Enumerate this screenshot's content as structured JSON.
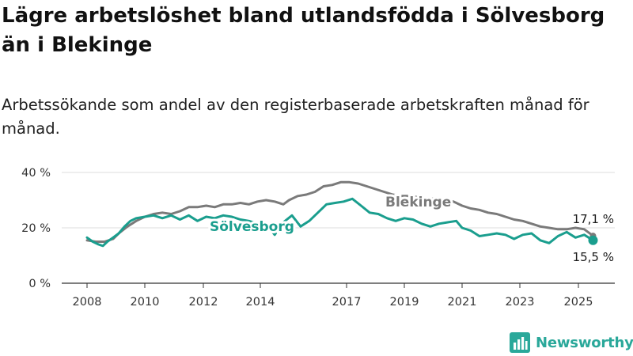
{
  "title": "Lägre arbetslöshet bland utlandsfödda i Sölvesborg än i Blekinge",
  "subtitle": "Arbetssökande som andel av den registerbaserade arbetskraften månad för månad.",
  "brand": {
    "name": "Newsworthy",
    "icon": "newsworthy-logo-icon",
    "color": "#2aa89a"
  },
  "chart_data": {
    "type": "line",
    "title": "Lägre arbetslöshet bland utlandsfödda i Sölvesborg än i Blekinge",
    "subtitle": "Arbetssökande som andel av den registerbaserade arbetskraften månad för månad.",
    "xlabel": "",
    "ylabel": "",
    "xlim": [
      2008,
      2025.75
    ],
    "ylim": [
      0,
      40
    ],
    "yticks": [
      0,
      20,
      40
    ],
    "yticklabels": [
      "0 %",
      "20 %",
      "40 %"
    ],
    "xticks": [
      2008,
      2010,
      2012,
      2014,
      2017,
      2019,
      2021,
      2023,
      2025
    ],
    "xticklabels": [
      "2008",
      "2010",
      "2012",
      "2014",
      "2017",
      "2019",
      "2021",
      "2023",
      "2025"
    ],
    "grid": true,
    "series": [
      {
        "name": "Blekinge",
        "color": "#7a7a7a",
        "end_label": "17,1 %",
        "points": [
          [
            2008.0,
            15.5
          ],
          [
            2008.3,
            15.0
          ],
          [
            2008.6,
            15.0
          ],
          [
            2008.9,
            16.0
          ],
          [
            2009.1,
            18.0
          ],
          [
            2009.4,
            20.5
          ],
          [
            2009.7,
            22.5
          ],
          [
            2010.0,
            24.0
          ],
          [
            2010.3,
            25.0
          ],
          [
            2010.6,
            25.5
          ],
          [
            2010.9,
            25.0
          ],
          [
            2011.2,
            26.0
          ],
          [
            2011.5,
            27.5
          ],
          [
            2011.8,
            27.5
          ],
          [
            2012.1,
            28.0
          ],
          [
            2012.4,
            27.5
          ],
          [
            2012.7,
            28.5
          ],
          [
            2013.0,
            28.5
          ],
          [
            2013.3,
            29.0
          ],
          [
            2013.6,
            28.5
          ],
          [
            2013.9,
            29.5
          ],
          [
            2014.2,
            30.0
          ],
          [
            2014.5,
            29.5
          ],
          [
            2014.8,
            28.5
          ],
          [
            2015.0,
            30.0
          ],
          [
            2015.3,
            31.5
          ],
          [
            2015.6,
            32.0
          ],
          [
            2015.9,
            33.0
          ],
          [
            2016.2,
            35.0
          ],
          [
            2016.5,
            35.5
          ],
          [
            2016.8,
            36.5
          ],
          [
            2017.1,
            36.5
          ],
          [
            2017.4,
            36.0
          ],
          [
            2017.7,
            35.0
          ],
          [
            2018.0,
            34.0
          ],
          [
            2018.3,
            33.0
          ],
          [
            2018.6,
            32.0
          ],
          [
            2018.9,
            31.5
          ],
          [
            2019.2,
            31.5
          ],
          [
            2019.5,
            31.0
          ],
          [
            2019.8,
            30.5
          ],
          [
            2020.1,
            30.5
          ],
          [
            2020.4,
            30.0
          ],
          [
            2020.7,
            29.5
          ],
          [
            2021.0,
            28.0
          ],
          [
            2021.3,
            27.0
          ],
          [
            2021.6,
            26.5
          ],
          [
            2021.9,
            25.5
          ],
          [
            2022.2,
            25.0
          ],
          [
            2022.5,
            24.0
          ],
          [
            2022.8,
            23.0
          ],
          [
            2023.1,
            22.5
          ],
          [
            2023.4,
            21.5
          ],
          [
            2023.7,
            20.5
          ],
          [
            2024.0,
            20.0
          ],
          [
            2024.3,
            19.5
          ],
          [
            2024.6,
            19.5
          ],
          [
            2024.9,
            20.0
          ],
          [
            2025.2,
            19.5
          ],
          [
            2025.5,
            17.1
          ]
        ]
      },
      {
        "name": "Sölvesborg",
        "color": "#1a9e8e",
        "end_label": "15,5 %",
        "points": [
          [
            2008.0,
            16.5
          ],
          [
            2008.2,
            15.0
          ],
          [
            2008.4,
            14.0
          ],
          [
            2008.55,
            13.5
          ],
          [
            2008.7,
            15.0
          ],
          [
            2008.9,
            16.5
          ],
          [
            2009.1,
            18.0
          ],
          [
            2009.3,
            20.5
          ],
          [
            2009.5,
            22.5
          ],
          [
            2009.7,
            23.5
          ],
          [
            2010.0,
            24.0
          ],
          [
            2010.3,
            24.5
          ],
          [
            2010.6,
            23.5
          ],
          [
            2010.9,
            24.5
          ],
          [
            2011.2,
            23.0
          ],
          [
            2011.5,
            24.5
          ],
          [
            2011.8,
            22.5
          ],
          [
            2012.1,
            24.0
          ],
          [
            2012.4,
            23.5
          ],
          [
            2012.7,
            24.5
          ],
          [
            2013.0,
            24.0
          ],
          [
            2013.3,
            23.0
          ],
          [
            2013.6,
            22.5
          ],
          [
            2013.9,
            21.5
          ],
          [
            2014.2,
            21.5
          ],
          [
            2014.5,
            17.5
          ],
          [
            2014.8,
            22.0
          ],
          [
            2015.1,
            24.5
          ],
          [
            2015.4,
            20.5
          ],
          [
            2015.7,
            22.5
          ],
          [
            2016.0,
            25.5
          ],
          [
            2016.3,
            28.5
          ],
          [
            2016.6,
            29.0
          ],
          [
            2016.9,
            29.5
          ],
          [
            2017.2,
            30.5
          ],
          [
            2017.5,
            28.0
          ],
          [
            2017.8,
            25.5
          ],
          [
            2018.1,
            25.0
          ],
          [
            2018.4,
            23.5
          ],
          [
            2018.7,
            22.5
          ],
          [
            2019.0,
            23.5
          ],
          [
            2019.3,
            23.0
          ],
          [
            2019.6,
            21.5
          ],
          [
            2019.9,
            20.5
          ],
          [
            2020.2,
            21.5
          ],
          [
            2020.5,
            22.0
          ],
          [
            2020.8,
            22.5
          ],
          [
            2021.0,
            20.0
          ],
          [
            2021.3,
            19.0
          ],
          [
            2021.6,
            17.0
          ],
          [
            2021.9,
            17.5
          ],
          [
            2022.2,
            18.0
          ],
          [
            2022.5,
            17.5
          ],
          [
            2022.8,
            16.0
          ],
          [
            2023.1,
            17.5
          ],
          [
            2023.4,
            18.0
          ],
          [
            2023.7,
            15.5
          ],
          [
            2024.0,
            14.5
          ],
          [
            2024.3,
            17.0
          ],
          [
            2024.6,
            18.5
          ],
          [
            2024.9,
            16.5
          ],
          [
            2025.2,
            17.5
          ],
          [
            2025.5,
            15.5
          ]
        ]
      }
    ]
  }
}
